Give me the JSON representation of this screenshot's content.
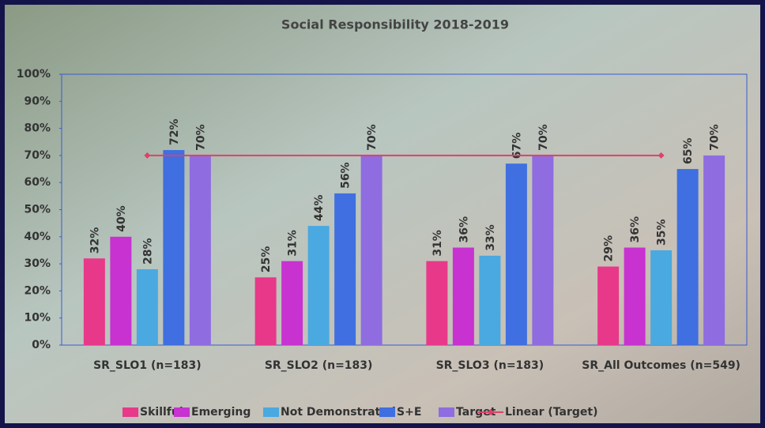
{
  "chart_data": {
    "type": "bar",
    "title": "Social Responsibility 2018-2019",
    "categories": [
      "SR_SLO1 (n=183)",
      "SR_SLO2 (n=183)",
      "SR_SLO3 (n=183)",
      "SR_All Outcomes (n=549)"
    ],
    "series": [
      {
        "name": "Skillful",
        "color": "#e8388a",
        "values": [
          32,
          25,
          31,
          29
        ],
        "value_labels": [
          "32%",
          "25%",
          "31%",
          "29%"
        ]
      },
      {
        "name": "Emerging",
        "color": "#c832d0",
        "values": [
          40,
          31,
          36,
          36
        ],
        "value_labels": [
          "40%",
          "31%",
          "36%",
          "36%"
        ]
      },
      {
        "name": "Not Demonstrated",
        "color": "#4aa9e0",
        "values": [
          28,
          44,
          33,
          35
        ],
        "value_labels": [
          "28%",
          "44%",
          "33%",
          "35%"
        ]
      },
      {
        "name": "S+E",
        "color": "#3f6fe0",
        "values": [
          72,
          56,
          67,
          65
        ],
        "value_labels": [
          "72%",
          "56%",
          "67%",
          "65%"
        ]
      },
      {
        "name": "Target",
        "color": "#8f6ce0",
        "values": [
          70,
          70,
          70,
          70
        ],
        "value_labels": [
          "70%",
          "70%",
          "70%",
          "70%"
        ]
      },
      {
        "name": "Linear (Target)",
        "type": "line",
        "color": "#e0406a",
        "values": [
          70,
          70,
          70,
          70
        ]
      }
    ],
    "ylim": [
      0,
      100
    ],
    "yticks": [
      {
        "value": 0,
        "label": "0%"
      },
      {
        "value": 10,
        "label": "10%"
      },
      {
        "value": 20,
        "label": "20%"
      },
      {
        "value": 30,
        "label": "30%"
      },
      {
        "value": 40,
        "label": "40%"
      },
      {
        "value": 50,
        "label": "50%"
      },
      {
        "value": 60,
        "label": "60%"
      },
      {
        "value": 70,
        "label": "70%"
      },
      {
        "value": 80,
        "label": "80%"
      },
      {
        "value": 90,
        "label": "90%"
      },
      {
        "value": 100,
        "label": "100%"
      }
    ],
    "legend": "bottom"
  }
}
